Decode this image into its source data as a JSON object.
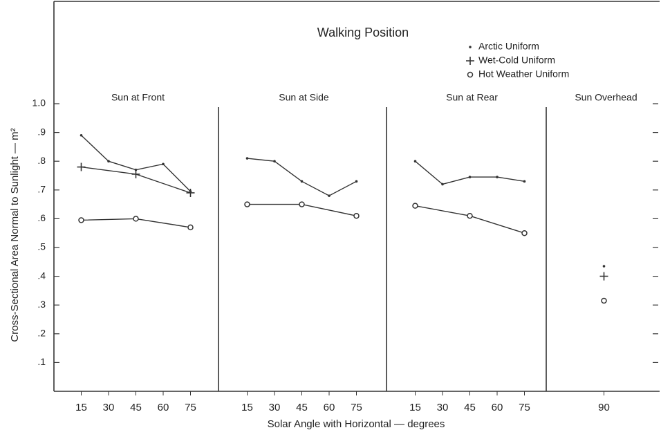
{
  "chart_data": {
    "type": "line",
    "title": "Walking Position",
    "x_label": "Solar Angle with Horizontal — degrees",
    "y_label": "Cross-Sectional Area Normal to Sunlight — m²",
    "ylim": [
      0,
      1
    ],
    "yticks": [
      {
        "value": 0.1,
        "label": ".1"
      },
      {
        "value": 0.2,
        "label": ".2"
      },
      {
        "value": 0.3,
        "label": ".3"
      },
      {
        "value": 0.4,
        "label": ".4"
      },
      {
        "value": 0.5,
        "label": ".5"
      },
      {
        "value": 0.6,
        "label": ".6"
      },
      {
        "value": 0.7,
        "label": ".7"
      },
      {
        "value": 0.8,
        "label": ".8"
      },
      {
        "value": 0.9,
        "label": ".9"
      },
      {
        "value": 1.0,
        "label": "1.0"
      }
    ],
    "color": "#333333",
    "legend": [
      {
        "name": "Arctic Uniform",
        "marker": "dot"
      },
      {
        "name": "Wet-Cold Uniform",
        "marker": "plus"
      },
      {
        "name": "Hot Weather Uniform",
        "marker": "circle"
      }
    ],
    "panels": [
      {
        "title": "Sun at Front",
        "xlim": [
          0,
          90
        ],
        "xticks": [
          15,
          30,
          45,
          60,
          75
        ],
        "series": [
          {
            "x": [
              15,
              30,
              45,
              60,
              75
            ],
            "values": [
              0.89,
              0.8,
              0.77,
              0.79,
              0.695
            ]
          },
          {
            "x": [
              15,
              45,
              75
            ],
            "values": [
              0.78,
              0.755,
              0.69
            ]
          },
          {
            "x": [
              15,
              45,
              75
            ],
            "values": [
              0.595,
              0.6,
              0.57
            ]
          }
        ]
      },
      {
        "title": "Sun at Side",
        "xlim": [
          0,
          90
        ],
        "xticks": [
          15,
          30,
          45,
          60,
          75
        ],
        "series": [
          {
            "x": [
              15,
              30,
              45,
              60,
              75
            ],
            "values": [
              0.81,
              0.8,
              0.73,
              0.68,
              0.73
            ]
          },
          {
            "x": [],
            "values": []
          },
          {
            "x": [
              15,
              45,
              75
            ],
            "values": [
              0.65,
              0.65,
              0.61
            ]
          }
        ]
      },
      {
        "title": "Sun at Rear",
        "xlim": [
          0,
          90
        ],
        "xticks": [
          15,
          30,
          45,
          60,
          75
        ],
        "series": [
          {
            "x": [
              15,
              30,
              45,
              60,
              75
            ],
            "values": [
              0.8,
              0.72,
              0.745,
              0.745,
              0.73
            ]
          },
          {
            "x": [],
            "values": []
          },
          {
            "x": [
              15,
              45,
              75
            ],
            "values": [
              0.645,
              0.61,
              0.55
            ]
          }
        ]
      },
      {
        "title": "Sun Overhead",
        "xlim": [
          60,
          120
        ],
        "xticks": [
          90
        ],
        "series": [
          {
            "x": [
              90
            ],
            "values": [
              0.435
            ]
          },
          {
            "x": [
              90
            ],
            "values": [
              0.4
            ]
          },
          {
            "x": [
              90
            ],
            "values": [
              0.315
            ]
          }
        ]
      }
    ]
  }
}
